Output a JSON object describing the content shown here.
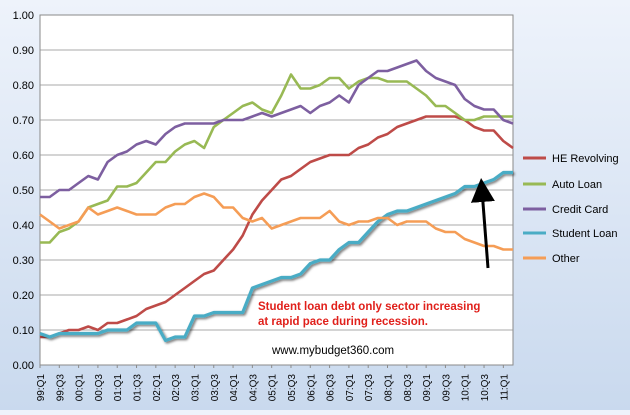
{
  "chart_data": {
    "type": "line",
    "ylim": [
      0,
      1.0
    ],
    "y_ticks": [
      "0.00",
      "0.10",
      "0.20",
      "0.30",
      "0.40",
      "0.50",
      "0.60",
      "0.70",
      "0.80",
      "0.90",
      "1.00"
    ],
    "x_tick_labels": [
      "99:Q1",
      "99:Q3",
      "00:Q1",
      "00:Q3",
      "01:Q1",
      "01:Q3",
      "02:Q1",
      "02:Q3",
      "03:Q1",
      "03:Q3",
      "04:Q1",
      "04:Q3",
      "05:Q1",
      "05:Q3",
      "06:Q1",
      "06:Q3",
      "07:Q1",
      "07:Q3",
      "08:Q1",
      "08:Q3",
      "09:Q1",
      "09:Q3",
      "10:Q1",
      "10:Q3",
      "11:Q1"
    ],
    "grid": true,
    "legend_position": "right",
    "series": [
      {
        "name": "HE Revolving",
        "color": "#be4b48",
        "values": [
          0.08,
          0.08,
          0.09,
          0.1,
          0.1,
          0.11,
          0.1,
          0.12,
          0.12,
          0.13,
          0.14,
          0.16,
          0.17,
          0.18,
          0.2,
          0.22,
          0.24,
          0.26,
          0.27,
          0.3,
          0.33,
          0.37,
          0.43,
          0.47,
          0.5,
          0.53,
          0.54,
          0.56,
          0.58,
          0.59,
          0.6,
          0.6,
          0.6,
          0.62,
          0.63,
          0.65,
          0.66,
          0.68,
          0.69,
          0.7,
          0.71,
          0.71,
          0.71,
          0.71,
          0.7,
          0.68,
          0.67,
          0.67,
          0.64,
          0.62
        ]
      },
      {
        "name": "Auto Loan",
        "color": "#98b954",
        "values": [
          0.35,
          0.35,
          0.38,
          0.39,
          0.41,
          0.45,
          0.46,
          0.47,
          0.51,
          0.51,
          0.52,
          0.55,
          0.58,
          0.58,
          0.61,
          0.63,
          0.64,
          0.62,
          0.68,
          0.7,
          0.72,
          0.74,
          0.75,
          0.73,
          0.72,
          0.77,
          0.83,
          0.79,
          0.79,
          0.8,
          0.82,
          0.82,
          0.79,
          0.81,
          0.82,
          0.82,
          0.81,
          0.81,
          0.81,
          0.79,
          0.77,
          0.74,
          0.74,
          0.72,
          0.7,
          0.7,
          0.71,
          0.71,
          0.71,
          0.71
        ]
      },
      {
        "name": "Credit Card",
        "color": "#7d5fa0",
        "values": [
          0.48,
          0.48,
          0.5,
          0.5,
          0.52,
          0.54,
          0.53,
          0.58,
          0.6,
          0.61,
          0.63,
          0.64,
          0.63,
          0.66,
          0.68,
          0.69,
          0.69,
          0.69,
          0.69,
          0.7,
          0.7,
          0.7,
          0.71,
          0.72,
          0.71,
          0.72,
          0.73,
          0.74,
          0.72,
          0.74,
          0.75,
          0.77,
          0.75,
          0.8,
          0.82,
          0.84,
          0.84,
          0.85,
          0.86,
          0.87,
          0.84,
          0.82,
          0.81,
          0.8,
          0.76,
          0.74,
          0.73,
          0.73,
          0.7,
          0.69
        ]
      },
      {
        "name": "Student Loan",
        "color": "#4aacc5",
        "values": [
          0.09,
          0.08,
          0.09,
          0.09,
          0.09,
          0.09,
          0.09,
          0.1,
          0.1,
          0.1,
          0.12,
          0.12,
          0.12,
          0.07,
          0.08,
          0.08,
          0.14,
          0.14,
          0.15,
          0.15,
          0.15,
          0.15,
          0.22,
          0.23,
          0.24,
          0.25,
          0.25,
          0.26,
          0.29,
          0.3,
          0.3,
          0.33,
          0.35,
          0.35,
          0.38,
          0.41,
          0.43,
          0.44,
          0.44,
          0.45,
          0.46,
          0.47,
          0.48,
          0.49,
          0.51,
          0.51,
          0.52,
          0.53,
          0.55,
          0.55
        ]
      },
      {
        "name": "Other",
        "color": "#f59d56",
        "values": [
          0.43,
          0.41,
          0.39,
          0.4,
          0.41,
          0.45,
          0.43,
          0.44,
          0.45,
          0.44,
          0.43,
          0.43,
          0.43,
          0.45,
          0.46,
          0.46,
          0.48,
          0.49,
          0.48,
          0.45,
          0.45,
          0.42,
          0.41,
          0.42,
          0.39,
          0.4,
          0.41,
          0.42,
          0.42,
          0.42,
          0.44,
          0.41,
          0.4,
          0.41,
          0.41,
          0.42,
          0.42,
          0.4,
          0.41,
          0.41,
          0.41,
          0.39,
          0.38,
          0.38,
          0.36,
          0.35,
          0.34,
          0.34,
          0.33,
          0.33
        ]
      }
    ],
    "annotations": {
      "headline": [
        "Student loan debt only sector increasing",
        "at rapid pace during recession."
      ],
      "headline_color": "#e0201b",
      "website": "www.mybudget360.com",
      "arrow_color": "#000000"
    }
  }
}
